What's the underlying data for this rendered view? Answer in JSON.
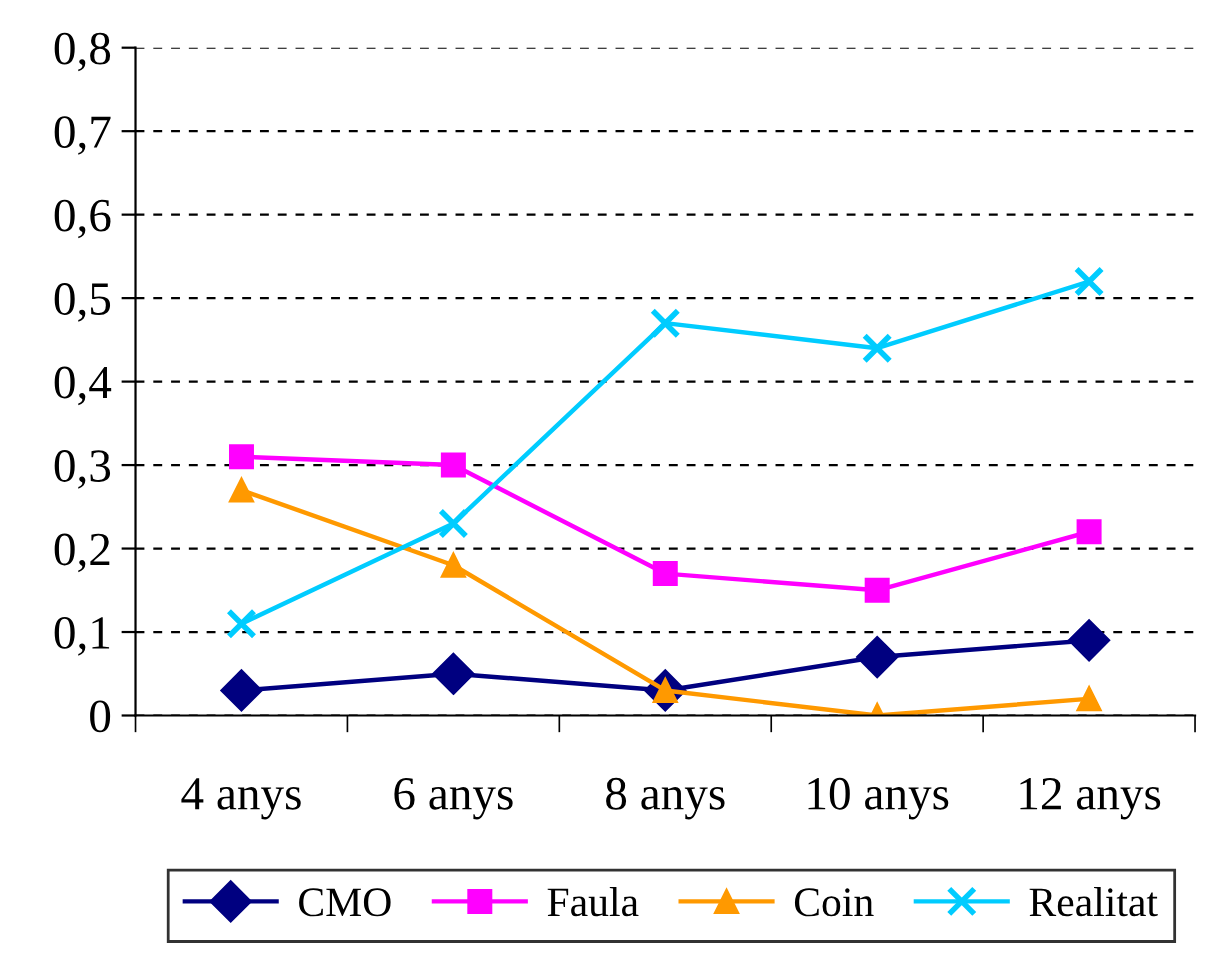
{
  "chart_data": {
    "type": "line",
    "categories": [
      "4 anys",
      "6 anys",
      "8 anys",
      "10 anys",
      "12 anys"
    ],
    "series": [
      {
        "name": "CMO",
        "color": "#000080",
        "marker": "diamond",
        "values": [
          0.03,
          0.05,
          0.03,
          0.07,
          0.09
        ]
      },
      {
        "name": "Faula",
        "color": "#ff00ff",
        "marker": "square",
        "values": [
          0.31,
          0.3,
          0.17,
          0.15,
          0.22
        ]
      },
      {
        "name": "Coin",
        "color": "#ff9900",
        "marker": "triangle",
        "values": [
          0.27,
          0.18,
          0.03,
          0.0,
          0.02
        ]
      },
      {
        "name": "Realitat",
        "color": "#00ccff",
        "marker": "cross",
        "values": [
          0.11,
          0.23,
          0.47,
          0.44,
          0.52
        ]
      }
    ],
    "ylim": [
      0,
      0.8
    ],
    "yticks": [
      0,
      {
        "value": 0.1,
        "label": "0,1"
      },
      {
        "value": 0.2,
        "label": "0,2"
      },
      {
        "value": 0.3,
        "label": "0,3"
      },
      {
        "value": 0.4,
        "label": "0,4"
      },
      {
        "value": 0.5,
        "label": "0,5"
      },
      {
        "value": 0.6,
        "label": "0,6"
      },
      {
        "value": 0.7,
        "label": "0,7"
      },
      {
        "value": 0.8,
        "label": "0,8"
      }
    ],
    "grid": "y",
    "line_style": "solid",
    "legend": "bottom"
  }
}
